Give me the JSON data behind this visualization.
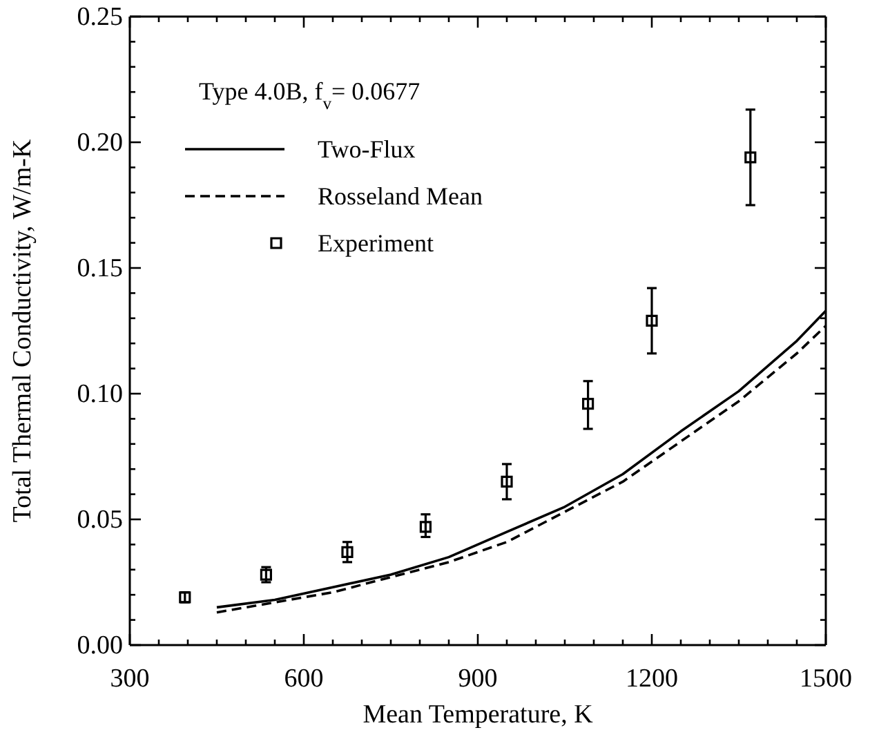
{
  "chart_data": {
    "type": "line",
    "xlabel": "Mean Temperature, K",
    "ylabel": "Total Thermal Conductivity, W/m-K",
    "legend_title": "Type 4.0B, f$_{v}$= 0.0677",
    "legend": "top left",
    "grid": false,
    "xlim": [
      300,
      1500
    ],
    "ylim": [
      0,
      0.25
    ],
    "xticks": [
      300,
      {
        "value": 350,
        "label": null
      },
      {
        "value": 400,
        "label": null
      },
      {
        "value": 450,
        "label": null
      },
      {
        "value": 500,
        "label": null
      },
      {
        "value": 550,
        "label": null
      },
      600,
      {
        "value": 650,
        "label": null
      },
      {
        "value": 700,
        "label": null
      },
      {
        "value": 750,
        "label": null
      },
      {
        "value": 800,
        "label": null
      },
      {
        "value": 850,
        "label": null
      },
      900,
      {
        "value": 950,
        "label": null
      },
      {
        "value": 1000,
        "label": null
      },
      {
        "value": 1050,
        "label": null
      },
      {
        "value": 1100,
        "label": null
      },
      {
        "value": 1150,
        "label": null
      },
      1200,
      {
        "value": 1250,
        "label": null
      },
      {
        "value": 1300,
        "label": null
      },
      {
        "value": 1350,
        "label": null
      },
      {
        "value": 1400,
        "label": null
      },
      {
        "value": 1450,
        "label": null
      },
      1500
    ],
    "yticks": [
      {
        "value": 0,
        "label": "0.00"
      },
      {
        "value": 0.01,
        "label": null
      },
      {
        "value": 0.02,
        "label": null
      },
      {
        "value": 0.03,
        "label": null
      },
      {
        "value": 0.04,
        "label": null
      },
      0.05,
      {
        "value": 0.06,
        "label": null
      },
      {
        "value": 0.07,
        "label": null
      },
      {
        "value": 0.08,
        "label": null
      },
      {
        "value": 0.09,
        "label": null
      },
      {
        "value": 0.1,
        "label": "0.10"
      },
      {
        "value": 0.11,
        "label": null
      },
      {
        "value": 0.12,
        "label": null
      },
      {
        "value": 0.13,
        "label": null
      },
      {
        "value": 0.14,
        "label": null
      },
      0.15,
      {
        "value": 0.16,
        "label": null
      },
      {
        "value": 0.17,
        "label": null
      },
      {
        "value": 0.18,
        "label": null
      },
      {
        "value": 0.19,
        "label": null
      },
      {
        "value": 0.2,
        "label": "0.20"
      },
      {
        "value": 0.21,
        "label": null
      },
      {
        "value": 0.22,
        "label": null
      },
      {
        "value": 0.23,
        "label": null
      },
      {
        "value": 0.24,
        "label": null
      },
      0.25
    ],
    "series": [
      {
        "name": "Two-Flux",
        "line_style": "solid",
        "marker": "none",
        "color": "#000000",
        "x": [
          450,
          550,
          650,
          750,
          850,
          950,
          1050,
          1150,
          1250,
          1350,
          1450,
          1500
        ],
        "values": [
          0.015,
          0.018,
          0.023,
          0.028,
          0.035,
          0.045,
          0.055,
          0.068,
          0.085,
          0.101,
          0.121,
          0.133
        ]
      },
      {
        "name": "Rosseland Mean",
        "line_style": "dashed",
        "marker": "none",
        "color": "#000000",
        "x": [
          450,
          550,
          650,
          750,
          850,
          950,
          1050,
          1150,
          1250,
          1350,
          1450,
          1500
        ],
        "values": [
          0.013,
          0.017,
          0.021,
          0.027,
          0.033,
          0.041,
          0.053,
          0.065,
          0.081,
          0.097,
          0.116,
          0.127
        ]
      },
      {
        "name": "Experiment",
        "type": "scatter",
        "marker": "square",
        "color": "#000000",
        "x": [
          395,
          535,
          675,
          810,
          950,
          1090,
          1200,
          1370
        ],
        "values": [
          0.019,
          0.028,
          0.037,
          0.047,
          0.065,
          0.096,
          0.129,
          0.194
        ],
        "errors": [
          0.002,
          0.003,
          [
            0.033,
            0.041
          ],
          [
            0.043,
            0.052
          ],
          [
            0.058,
            0.072
          ],
          [
            0.086,
            0.105
          ],
          [
            0.116,
            0.142
          ],
          [
            0.175,
            0.213
          ]
        ]
      }
    ]
  }
}
